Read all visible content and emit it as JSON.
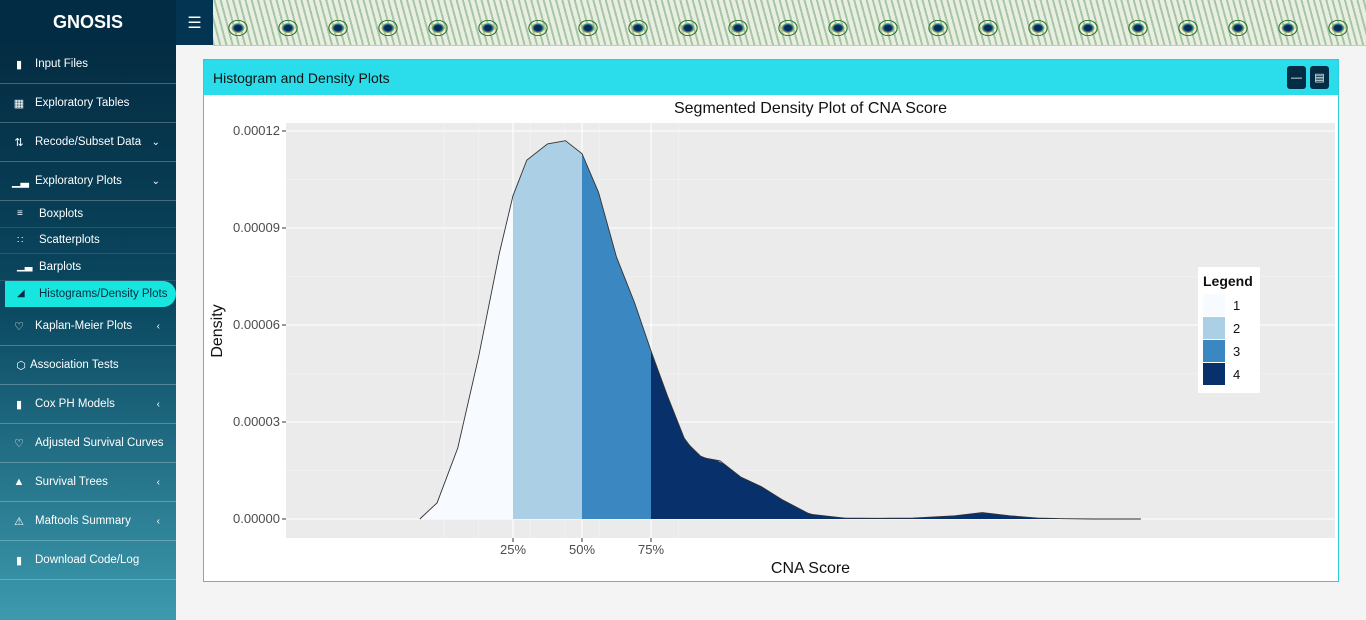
{
  "app": {
    "title": "GNOSIS",
    "menu_icon": "hamburger-icon"
  },
  "sidebar": {
    "items": [
      {
        "label": "Input Files",
        "icon": "file-icon"
      },
      {
        "label": "Exploratory Tables",
        "icon": "table-icon"
      },
      {
        "label": "Recode/Subset Data",
        "icon": "sort-icon",
        "chevron": "down"
      },
      {
        "label": "Exploratory Plots",
        "icon": "bar-chart-icon",
        "chevron": "down"
      },
      {
        "label": "Kaplan-Meier Plots",
        "icon": "heart-icon",
        "chevron": "left"
      },
      {
        "label": "Association Tests",
        "icon": "hexagon-icon"
      },
      {
        "label": "Cox PH Models",
        "icon": "file-chart-icon",
        "chevron": "left"
      },
      {
        "label": "Adjusted Survival Curves",
        "icon": "heart-icon"
      },
      {
        "label": "Survival Trees",
        "icon": "tree-icon",
        "chevron": "left"
      },
      {
        "label": "Maftools Summary",
        "icon": "warning-icon",
        "chevron": "left"
      },
      {
        "label": "Download Code/Log",
        "icon": "download-file-icon"
      }
    ],
    "subitems": [
      {
        "label": "Boxplots",
        "icon": "align-left-icon"
      },
      {
        "label": "Scatterplots",
        "icon": "dots-icon"
      },
      {
        "label": "Barplots",
        "icon": "bar-chart-icon"
      },
      {
        "label": "Histograms/Density Plots",
        "icon": "area-chart-icon",
        "active": true
      }
    ]
  },
  "panel": {
    "title": "Histogram and Density Plots",
    "minimize_icon": "minus-icon",
    "options_icon": "list-icon"
  },
  "chart_data": {
    "type": "area",
    "title": "Segmented Density Plot of CNA Score",
    "xlabel": "CNA Score",
    "ylabel": "Density",
    "ylim": [
      0,
      0.00012
    ],
    "yticks": [
      "0.00000",
      "0.00003",
      "0.00006",
      "0.00009",
      "0.00012"
    ],
    "yticks_values": [
      0,
      3e-05,
      6e-05,
      9e-05,
      0.00012
    ],
    "xticks": [
      "25%",
      "50%",
      "75%"
    ],
    "xticks_pos": [
      0.25,
      0.5,
      0.75
    ],
    "curve_x_quantiles": [
      -0.675,
      -0.55,
      -0.4,
      -0.25,
      -0.1,
      0.0,
      0.1,
      0.25,
      0.38,
      0.5,
      0.62,
      0.75,
      0.88,
      1.0,
      1.12,
      1.25,
      1.37,
      1.5,
      1.65,
      1.8,
      1.95,
      2.15,
      2.4,
      2.65,
      2.9,
      3.2,
      3.4,
      3.6,
      3.8,
      4.0,
      4.2,
      4.4,
      4.55
    ],
    "curve_y": [
      0,
      5e-06,
      2.2e-05,
      5e-05,
      8.2e-05,
      0.0001,
      0.000111,
      0.000116,
      0.000117,
      0.000113,
      0.000101,
      8.1e-05,
      6.7e-05,
      5.2e-05,
      3.8e-05,
      2.4e-05,
      1.9e-05,
      1.8e-05,
      1.3e-05,
      1e-05,
      6e-06,
      1.5e-06,
      3e-07,
      2e-07,
      3e-07,
      1e-06,
      2e-06,
      1e-06,
      3e-07,
      1e-07,
      0,
      0,
      0
    ],
    "segments": [
      {
        "name": "1",
        "from": -0.675,
        "to": 0.0,
        "color": "#f7fbff"
      },
      {
        "name": "2",
        "from": 0.0,
        "to": 0.5,
        "color": "#abcfe5"
      },
      {
        "name": "3",
        "from": 0.5,
        "to": 1.0,
        "color": "#3b87c1"
      },
      {
        "name": "4",
        "from": 1.0,
        "to": 4.55,
        "color": "#08306b"
      }
    ],
    "legend": {
      "title": "Legend",
      "position": "right"
    },
    "grid": true
  }
}
